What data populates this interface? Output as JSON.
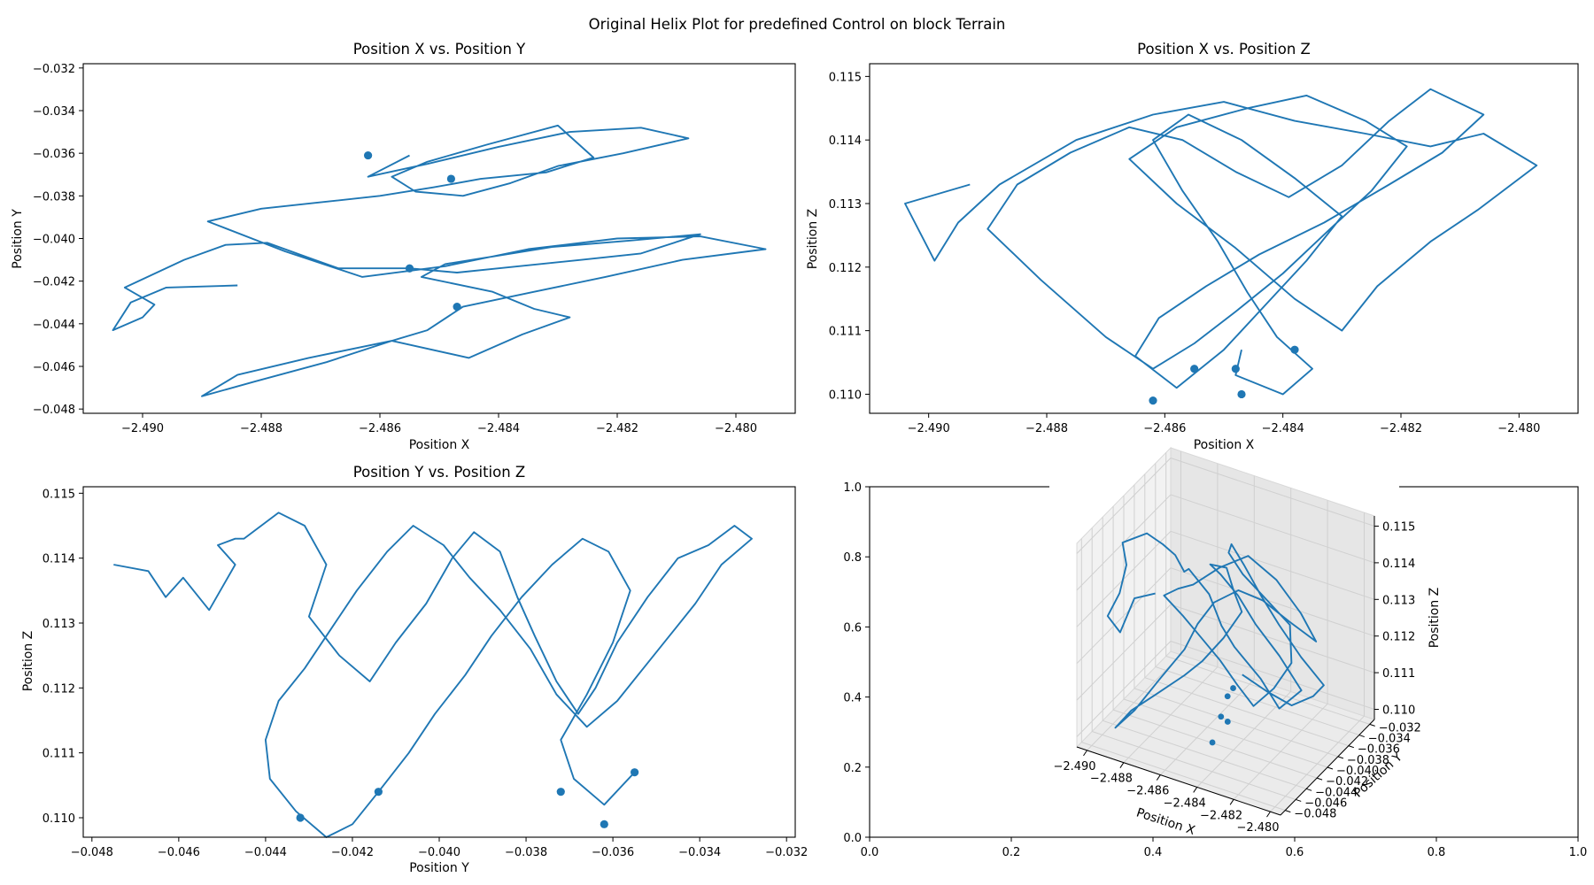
{
  "figure": {
    "title": "Original Helix Plot for predefined Control on block Terrain",
    "line_color": "#1f77b4"
  },
  "chart_data": [
    {
      "type": "line",
      "title": "Position X vs. Position Y",
      "xlabel": "Position X",
      "ylabel": "Position Y",
      "xlim": [
        -2.491,
        -2.479
      ],
      "ylim": [
        -0.0482,
        -0.0318
      ],
      "xticks": [
        "−2.490",
        "−2.488",
        "−2.486",
        "−2.484",
        "−2.482",
        "−2.480"
      ],
      "yticks": [
        "−0.048",
        "−0.046",
        "−0.044",
        "−0.042",
        "−0.040",
        "−0.038",
        "−0.036",
        "−0.034",
        "−0.032"
      ],
      "grid": false,
      "x": [
        -2.4884,
        -2.4896,
        -2.4902,
        -2.4905,
        -2.49,
        -2.4898,
        -2.4903,
        -2.4893,
        -2.4886,
        -2.4879,
        -2.4871,
        -2.4867,
        -2.4855,
        -2.4847,
        -2.484,
        -2.4826,
        -2.4816,
        -2.4806,
        -2.4818,
        -2.4831,
        -2.484,
        -2.4849,
        -2.4853,
        -2.4841,
        -2.4834,
        -2.4828,
        -2.4836,
        -2.4845,
        -2.4858,
        -2.4872,
        -2.4884,
        -2.489,
        -2.4881,
        -2.4869,
        -2.4858,
        -2.4852,
        -2.4846,
        -2.4834,
        -2.4822,
        -2.4809,
        -2.4795,
        -2.4806,
        -2.482,
        -2.4835,
        -2.4849,
        -2.4863,
        -2.4876,
        -2.4889,
        -2.488,
        -2.487,
        -2.486,
        -2.4851,
        -2.4843,
        -2.4832,
        -2.4824,
        -2.483,
        -2.4842,
        -2.4852,
        -2.4858,
        -2.4854,
        -2.4846,
        -2.4838,
        -2.483,
        -2.4819,
        -2.4808,
        -2.4816,
        -2.4828,
        -2.484,
        -2.4852,
        -2.4862,
        -2.4855
      ],
      "y": [
        -0.0422,
        -0.0423,
        -0.043,
        -0.0443,
        -0.0437,
        -0.0431,
        -0.0423,
        -0.041,
        -0.0403,
        -0.0402,
        -0.041,
        -0.0414,
        -0.0414,
        -0.0416,
        -0.0414,
        -0.041,
        -0.0407,
        -0.0398,
        -0.0401,
        -0.0404,
        -0.0408,
        -0.0412,
        -0.0418,
        -0.0425,
        -0.0433,
        -0.0437,
        -0.0445,
        -0.0456,
        -0.0448,
        -0.0456,
        -0.0464,
        -0.0474,
        -0.0467,
        -0.0458,
        -0.0448,
        -0.0443,
        -0.0432,
        -0.0425,
        -0.0418,
        -0.041,
        -0.0405,
        -0.0399,
        -0.04,
        -0.0405,
        -0.0413,
        -0.0418,
        -0.0406,
        -0.0392,
        -0.0386,
        -0.0383,
        -0.038,
        -0.0376,
        -0.0372,
        -0.0369,
        -0.0362,
        -0.0347,
        -0.0356,
        -0.0364,
        -0.0371,
        -0.0378,
        -0.038,
        -0.0374,
        -0.0366,
        -0.036,
        -0.0353,
        -0.0348,
        -0.035,
        -0.0357,
        -0.0365,
        -0.0371,
        -0.0361
      ],
      "markers": [
        {
          "x": -2.4862,
          "y": -0.0361
        },
        {
          "x": -2.4848,
          "y": -0.0372
        },
        {
          "x": -2.4855,
          "y": -0.0414
        },
        {
          "x": -2.4847,
          "y": -0.0432
        }
      ]
    },
    {
      "type": "line",
      "title": "Position X vs. Position Z",
      "xlabel": "Position X",
      "ylabel": "Position Z",
      "xlim": [
        -2.491,
        -2.479
      ],
      "ylim": [
        0.1097,
        0.1152
      ],
      "xticks": [
        "−2.490",
        "−2.488",
        "−2.486",
        "−2.484",
        "−2.482",
        "−2.480"
      ],
      "yticks": [
        "0.110",
        "0.111",
        "0.112",
        "0.113",
        "0.114",
        "0.115"
      ],
      "grid": false,
      "x": [
        -2.4893,
        -2.4904,
        -2.4899,
        -2.4895,
        -2.4888,
        -2.4875,
        -2.4862,
        -2.485,
        -2.4838,
        -2.4826,
        -2.4815,
        -2.4806,
        -2.4797,
        -2.4807,
        -2.4815,
        -2.4824,
        -2.483,
        -2.4838,
        -2.4848,
        -2.4858,
        -2.4866,
        -2.4858,
        -2.4846,
        -2.4836,
        -2.4826,
        -2.4819,
        -2.4825,
        -2.4832,
        -2.484,
        -2.4848,
        -2.4855,
        -2.4862,
        -2.487,
        -2.4881,
        -2.489,
        -2.4885,
        -2.4876,
        -2.4866,
        -2.4857,
        -2.4848,
        -2.4839,
        -2.483,
        -2.4822,
        -2.4815,
        -2.4806,
        -2.4813,
        -2.4822,
        -2.4833,
        -2.4844,
        -2.4853,
        -2.4861,
        -2.4865,
        -2.4858,
        -2.485,
        -2.4843,
        -2.4836,
        -2.483,
        -2.4838,
        -2.4847,
        -2.4856,
        -2.4862,
        -2.4857,
        -2.4851,
        -2.4846,
        -2.4841,
        -2.4835,
        -2.484,
        -2.4848,
        -2.4847
      ],
      "y": [
        0.1133,
        0.113,
        0.1121,
        0.1127,
        0.1133,
        0.114,
        0.1144,
        0.1146,
        0.1143,
        0.1141,
        0.1139,
        0.1141,
        0.1136,
        0.1129,
        0.1124,
        0.1117,
        0.111,
        0.1115,
        0.1123,
        0.113,
        0.1137,
        0.1142,
        0.1145,
        0.1147,
        0.1143,
        0.1139,
        0.1132,
        0.1126,
        0.1119,
        0.1113,
        0.1108,
        0.1104,
        0.1109,
        0.1118,
        0.1126,
        0.1133,
        0.1138,
        0.1142,
        0.114,
        0.1135,
        0.1131,
        0.1136,
        0.1143,
        0.1148,
        0.1144,
        0.1138,
        0.1133,
        0.1127,
        0.1122,
        0.1117,
        0.1112,
        0.1106,
        0.1101,
        0.1107,
        0.1114,
        0.1121,
        0.1128,
        0.1134,
        0.114,
        0.1144,
        0.114,
        0.1132,
        0.1124,
        0.1116,
        0.1109,
        0.1104,
        0.11,
        0.1103,
        0.1107
      ],
      "markers": [
        {
          "x": -2.4862,
          "y": 0.1099
        },
        {
          "x": -2.4855,
          "y": 0.1104
        },
        {
          "x": -2.4848,
          "y": 0.1104
        },
        {
          "x": -2.4847,
          "y": 0.11
        },
        {
          "x": -2.4838,
          "y": 0.1107
        }
      ]
    },
    {
      "type": "line",
      "title": "Position Y vs. Position Z",
      "xlabel": "Position Y",
      "ylabel": "Position Z",
      "xlim": [
        -0.0482,
        -0.0318
      ],
      "ylim": [
        0.1097,
        0.1151
      ],
      "xticks": [
        "−0.048",
        "−0.046",
        "−0.044",
        "−0.042",
        "−0.040",
        "−0.038",
        "−0.036",
        "−0.034",
        "−0.032"
      ],
      "yticks": [
        "0.110",
        "0.111",
        "0.112",
        "0.113",
        "0.114",
        "0.115"
      ],
      "grid": false,
      "x": [
        -0.0475,
        -0.0467,
        -0.0463,
        -0.0459,
        -0.0453,
        -0.0447,
        -0.0451,
        -0.0447,
        -0.0445,
        -0.0437,
        -0.0431,
        -0.0426,
        -0.043,
        -0.0423,
        -0.0416,
        -0.041,
        -0.0403,
        -0.0397,
        -0.0392,
        -0.0386,
        -0.0382,
        -0.0378,
        -0.0373,
        -0.0368,
        -0.0364,
        -0.0359,
        -0.0352,
        -0.0345,
        -0.0338,
        -0.0332,
        -0.0328,
        -0.0335,
        -0.0341,
        -0.0347,
        -0.0353,
        -0.0359,
        -0.0366,
        -0.0373,
        -0.0379,
        -0.0386,
        -0.0393,
        -0.0399,
        -0.0406,
        -0.0412,
        -0.0419,
        -0.0425,
        -0.0431,
        -0.0437,
        -0.044,
        -0.0439,
        -0.0433,
        -0.0426,
        -0.042,
        -0.0414,
        -0.0407,
        -0.0401,
        -0.0394,
        -0.0388,
        -0.0381,
        -0.0374,
        -0.0367,
        -0.0361,
        -0.0356,
        -0.036,
        -0.0366,
        -0.0372,
        -0.0369,
        -0.0362,
        -0.0355
      ],
      "y": [
        0.1139,
        0.1138,
        0.1134,
        0.1137,
        0.1132,
        0.1139,
        0.1142,
        0.1143,
        0.1143,
        0.1147,
        0.1145,
        0.1139,
        0.1131,
        0.1125,
        0.1121,
        0.1127,
        0.1133,
        0.114,
        0.1144,
        0.1141,
        0.1134,
        0.1128,
        0.1121,
        0.1116,
        0.112,
        0.1127,
        0.1134,
        0.114,
        0.1142,
        0.1145,
        0.1143,
        0.1139,
        0.1133,
        0.1128,
        0.1123,
        0.1118,
        0.1114,
        0.1119,
        0.1126,
        0.1132,
        0.1137,
        0.1142,
        0.1145,
        0.1141,
        0.1135,
        0.1129,
        0.1123,
        0.1118,
        0.1112,
        0.1106,
        0.1101,
        0.1097,
        0.1099,
        0.1104,
        0.111,
        0.1116,
        0.1122,
        0.1128,
        0.1134,
        0.1139,
        0.1143,
        0.1141,
        0.1135,
        0.1127,
        0.1119,
        0.1112,
        0.1106,
        0.1102,
        0.1107
      ],
      "markers": [
        {
          "x": -0.0432,
          "y": 0.11
        },
        {
          "x": -0.0414,
          "y": 0.1104
        },
        {
          "x": -0.0372,
          "y": 0.1104
        },
        {
          "x": -0.0362,
          "y": 0.1099
        },
        {
          "x": -0.0355,
          "y": 0.1107
        }
      ]
    },
    {
      "type": "line",
      "title": "",
      "projection": "3d",
      "xlabel": "Position X",
      "ylabel": "Position Y",
      "zlabel": "Position Z",
      "outer_xlim": [
        0.0,
        1.0
      ],
      "outer_ylim": [
        0.0,
        1.0
      ],
      "outer_xticks": [
        "0.0",
        "0.2",
        "0.4",
        "0.6",
        "0.8",
        "1.0"
      ],
      "outer_yticks": [
        "0.0",
        "0.2",
        "0.4",
        "0.6",
        "0.8",
        "1.0"
      ],
      "xticks": [
        "−2.490",
        "−2.488",
        "−2.486",
        "−2.484",
        "−2.482",
        "−2.480"
      ],
      "yticks": [
        "−0.048",
        "−0.046",
        "−0.044",
        "−0.042",
        "−0.040",
        "−0.038",
        "−0.036",
        "−0.034",
        "−0.032"
      ],
      "zticks": [
        "0.110",
        "0.111",
        "0.112",
        "0.113",
        "0.114",
        "0.115"
      ],
      "grid": true,
      "pane_color": "#f2f2f2"
    }
  ]
}
